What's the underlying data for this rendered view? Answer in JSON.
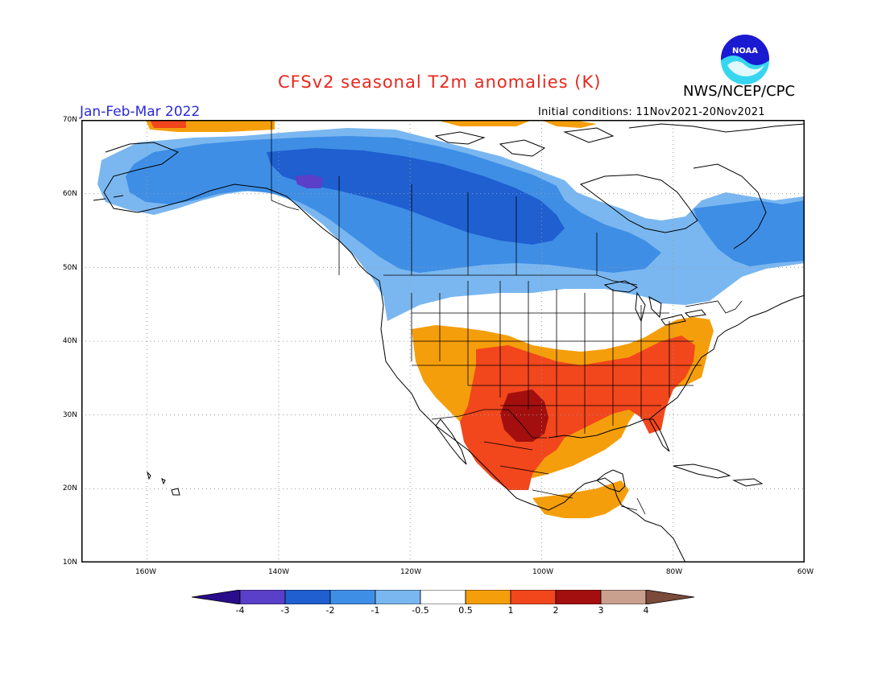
{
  "title": "CFSv2 seasonal T2m anomalies (K)",
  "organization": "NWS/NCEP/CPC",
  "period": "Jan-Feb-Mar 2022",
  "initial_conditions": "Initial conditions: 11Nov2021-20Nov2021",
  "logo_text": "NOAA",
  "lat_labels": [
    "70N",
    "60N",
    "50N",
    "40N",
    "30N",
    "20N",
    "10N"
  ],
  "lon_labels": [
    "160W",
    "140W",
    "120W",
    "100W",
    "80W",
    "60W"
  ],
  "colorbar": {
    "labels": [
      "-4",
      "-3",
      "-2",
      "-1",
      "-0.5",
      "0.5",
      "1",
      "2",
      "3",
      "4"
    ],
    "colors": [
      "#2a0d8a",
      "#5a3fc8",
      "#1f5fd0",
      "#3e8ee6",
      "#7ab7f0",
      "#ffffff",
      "#f59e0b",
      "#f2461c",
      "#a30f0f",
      "#c9a08e",
      "#7a4a3a"
    ]
  },
  "map_extent": {
    "lon": [
      -170,
      -60
    ],
    "lat": [
      10,
      70
    ]
  },
  "anomaly_colors": {
    "c-4": "#2a0d8a",
    "c-3": "#5a3fc8",
    "c-2": "#1f5fd0",
    "c-1": "#3e8ee6",
    "c-05": "#7ab7f0",
    "c05": "#f59e0b",
    "c1": "#f2461c",
    "c2": "#a30f0f",
    "c3": "#c9a08e"
  }
}
